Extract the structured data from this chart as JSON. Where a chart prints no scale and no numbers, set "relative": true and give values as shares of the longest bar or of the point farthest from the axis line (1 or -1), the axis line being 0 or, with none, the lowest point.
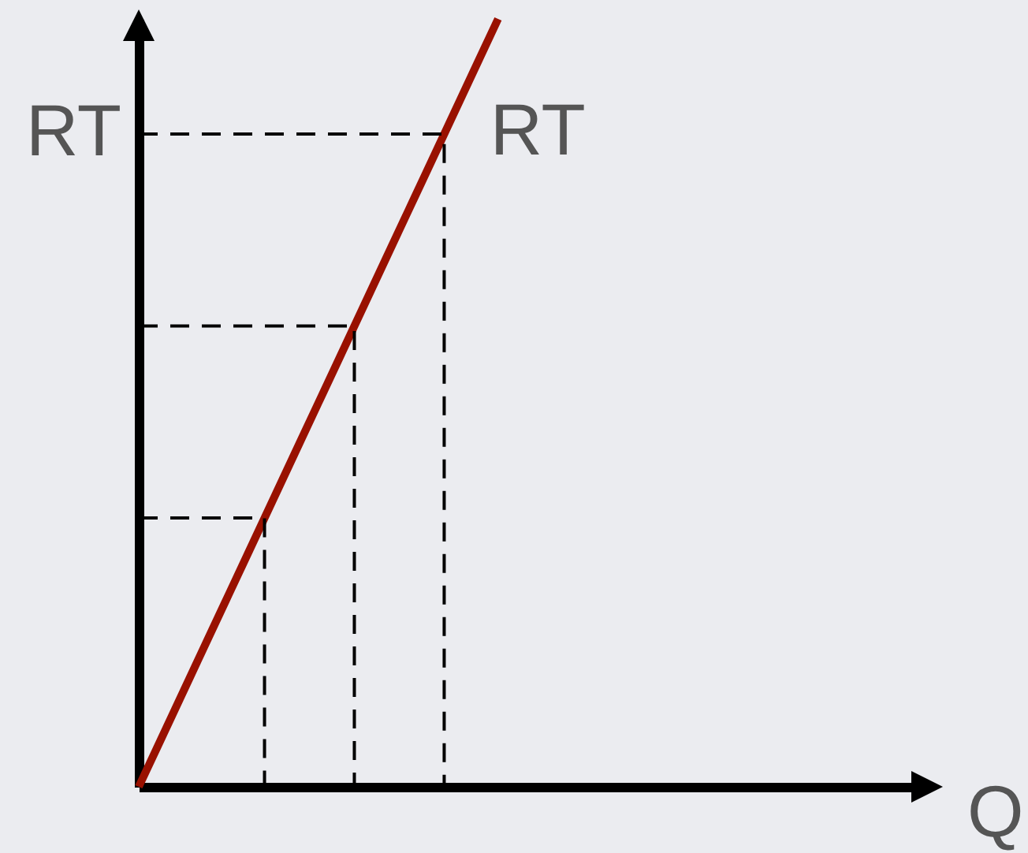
{
  "chart_data": {
    "type": "line",
    "relative": true,
    "xlabel": "Q",
    "ylabel": "RT",
    "legend": false,
    "marker": "none",
    "categories": [
      null,
      null,
      null,
      null,
      null,
      null,
      null,
      null,
      null,
      null,
      null,
      null,
      null,
      null,
      null,
      null,
      null,
      null,
      null,
      null,
      null,
      null,
      null,
      null,
      null,
      null,
      null,
      null,
      null,
      null,
      null,
      null,
      null,
      null,
      null,
      null,
      null,
      null,
      null,
      null,
      null,
      null,
      null,
      null
    ],
    "series": [
      {
        "name": "RT",
        "color": "#991100",
        "line_style": "solid",
        "values": [
          0,
          0.05,
          0.1,
          0.15,
          0.2,
          0.25,
          0.3,
          0.35,
          0.4,
          0.45,
          0.5,
          0.55,
          0.6,
          0.65,
          0.7,
          0.75,
          0.8,
          0.85,
          0.9,
          0.95,
          1,
          null,
          null,
          null,
          null,
          null,
          null,
          null,
          null,
          null,
          null,
          null,
          null,
          null,
          null,
          null,
          null,
          null,
          null,
          null,
          null,
          null,
          null,
          null
        ]
      },
      {
        "type": "step",
        "color": "#000000",
        "line_style": "dashed",
        "values": [
          0.35,
          0.35,
          0.35,
          0.35,
          0.35,
          0.35,
          0.35,
          0,
          null,
          null,
          null,
          null,
          null,
          null,
          null,
          null,
          null,
          null,
          null,
          null,
          null,
          null,
          null,
          null,
          null,
          null,
          null,
          null,
          null,
          null,
          null,
          null,
          null,
          null,
          null,
          null,
          null,
          null,
          null,
          null,
          null,
          null,
          null,
          null
        ]
      },
      {
        "type": "step",
        "color": "#000000",
        "line_style": "dashed",
        "values": [
          0.6,
          0.6,
          0.6,
          0.6,
          0.6,
          0.6,
          0.6,
          0.6,
          0.6,
          0.6,
          0.6,
          0.6,
          0,
          null,
          null,
          null,
          null,
          null,
          null,
          null,
          null,
          null,
          null,
          null,
          null,
          null,
          null,
          null,
          null,
          null,
          null,
          null,
          null,
          null,
          null,
          null,
          null,
          null,
          null,
          null,
          null,
          null,
          null,
          null
        ]
      },
      {
        "type": "step",
        "color": "#000000",
        "line_style": "dashed",
        "values": [
          0.85,
          0.85,
          0.85,
          0.85,
          0.85,
          0.85,
          0.85,
          0.85,
          0.85,
          0.85,
          0.85,
          0.85,
          0.85,
          0.85,
          0.85,
          0.85,
          0.85,
          0,
          null,
          null,
          null,
          null,
          null,
          null,
          null,
          null,
          null,
          null,
          null,
          null,
          null,
          null,
          null,
          null,
          null,
          null,
          null,
          null,
          null,
          null,
          null,
          null,
          null,
          null
        ]
      }
    ]
  }
}
